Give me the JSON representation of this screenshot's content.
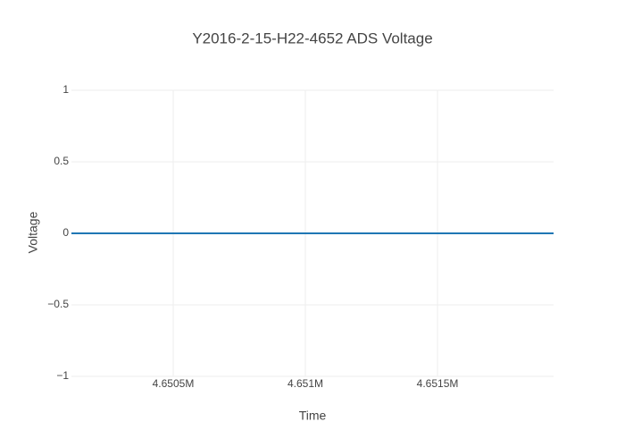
{
  "chart_data": {
    "type": "line",
    "title": "Y2016-2-15-H22-4652 ADS Voltage",
    "x_label": "Time",
    "y_label": "Voltage",
    "x": [
      4650115,
      4651939
    ],
    "series": [
      {
        "name": "Voltage",
        "color": "#1f77b4",
        "values": [
          0,
          0
        ]
      }
    ],
    "xlim": [
      4650115,
      4651939
    ],
    "xticks": [
      {
        "value": 4650500,
        "label": "4.6505M"
      },
      {
        "value": 4651000,
        "label": "4.651M"
      },
      {
        "value": 4651500,
        "label": "4.6515M"
      }
    ],
    "ylim": [
      -1,
      1
    ],
    "yticks": [
      {
        "value": -1,
        "label": "−1"
      },
      {
        "value": -0.5,
        "label": "−0.5"
      },
      0,
      0.5,
      1
    ],
    "grid": true
  }
}
